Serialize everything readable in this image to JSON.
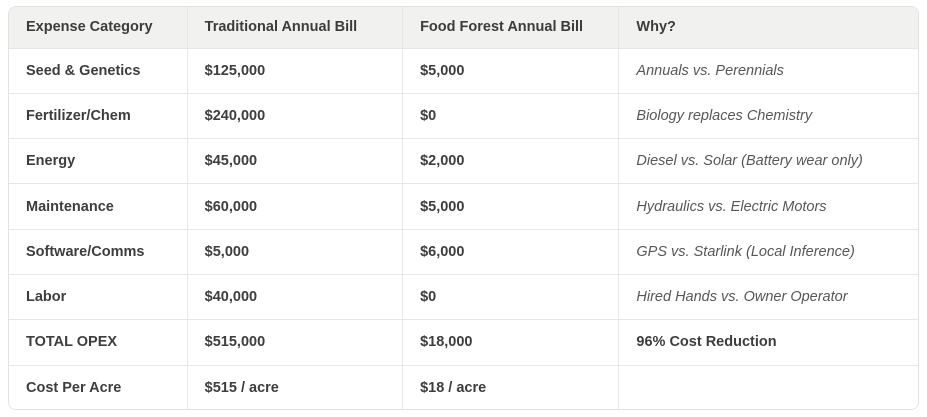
{
  "chart_data": {
    "type": "table",
    "columns": [
      "Expense Category",
      "Traditional Annual Bill",
      "Food Forest Annual Bill",
      "Why?"
    ],
    "rows": [
      {
        "category": "Seed & Genetics",
        "traditional": "$125,000",
        "food_forest": "$5,000",
        "why": "Annuals vs. Perennials"
      },
      {
        "category": "Fertilizer/Chem",
        "traditional": "$240,000",
        "food_forest": "$0",
        "why": "Biology replaces Chemistry"
      },
      {
        "category": "Energy",
        "traditional": "$45,000",
        "food_forest": "$2,000",
        "why": "Diesel vs. Solar (Battery wear only)"
      },
      {
        "category": "Maintenance",
        "traditional": "$60,000",
        "food_forest": "$5,000",
        "why": "Hydraulics vs. Electric Motors"
      },
      {
        "category": "Software/Comms",
        "traditional": "$5,000",
        "food_forest": "$6,000",
        "why": "GPS vs. Starlink (Local Inference)"
      },
      {
        "category": "Labor",
        "traditional": "$40,000",
        "food_forest": "$0",
        "why": "Hired Hands vs. Owner Operator"
      },
      {
        "category": "TOTAL OPEX",
        "traditional": "$515,000",
        "food_forest": "$18,000",
        "why": "96% Cost Reduction"
      },
      {
        "category": "Cost Per Acre",
        "traditional": "$515 / acre",
        "food_forest": "$18 / acre",
        "why": ""
      }
    ]
  },
  "colors": {
    "header_bg": "#f1f1f0",
    "row_bg": "#ffffff",
    "border": "#e7e7e6",
    "text_dark": "#3d3d3d",
    "text_why_italic": "#575757"
  }
}
